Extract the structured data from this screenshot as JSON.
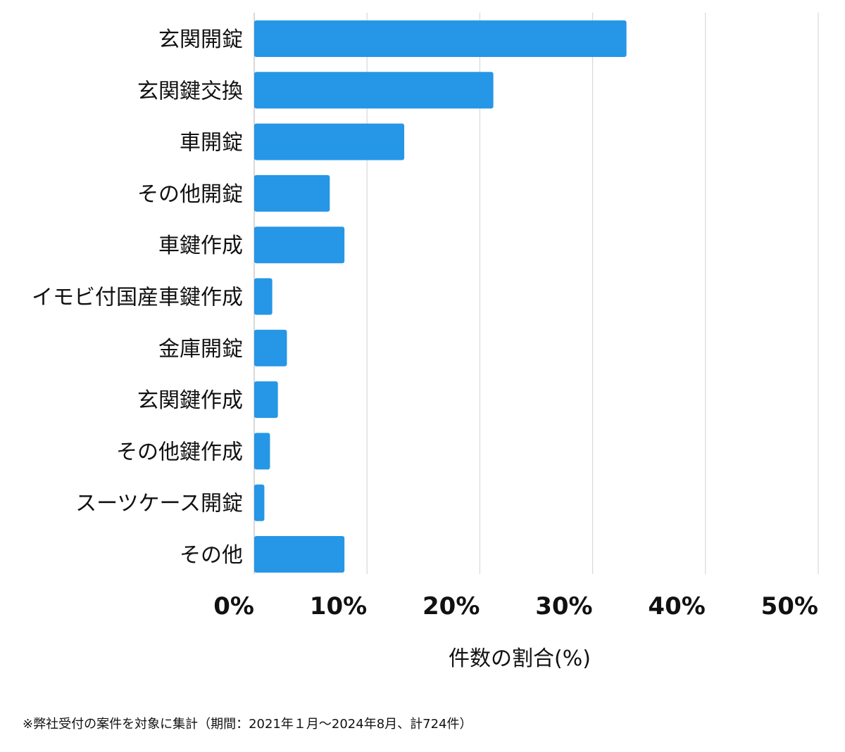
{
  "chart_data": {
    "type": "bar",
    "orientation": "horizontal",
    "categories": [
      "玄関開錠",
      "玄関鍵交換",
      "車開錠",
      "その他開錠",
      "車鍵作成",
      "イモビ付国産車鍵作成",
      "金庫開錠",
      "玄関鍵作成",
      "その他鍵作成",
      "スーツケース開錠",
      "その他"
    ],
    "values": [
      33,
      21.2,
      13.3,
      6.7,
      8,
      1.6,
      2.9,
      2.1,
      1.4,
      0.9,
      8
    ],
    "xlim": [
      0,
      50
    ],
    "xticks": [
      0,
      10,
      20,
      30,
      40,
      50
    ],
    "xtick_labels": [
      "0%",
      "10%",
      "20%",
      "30%",
      "40%",
      "50%"
    ],
    "xlabel": "件数の割合(%)",
    "grid": "vertical",
    "bar_color": "#2696e6"
  },
  "footnote": "※弊社受付の案件を対象に集計（期間：2021年１月〜2024年8月、計724件）"
}
